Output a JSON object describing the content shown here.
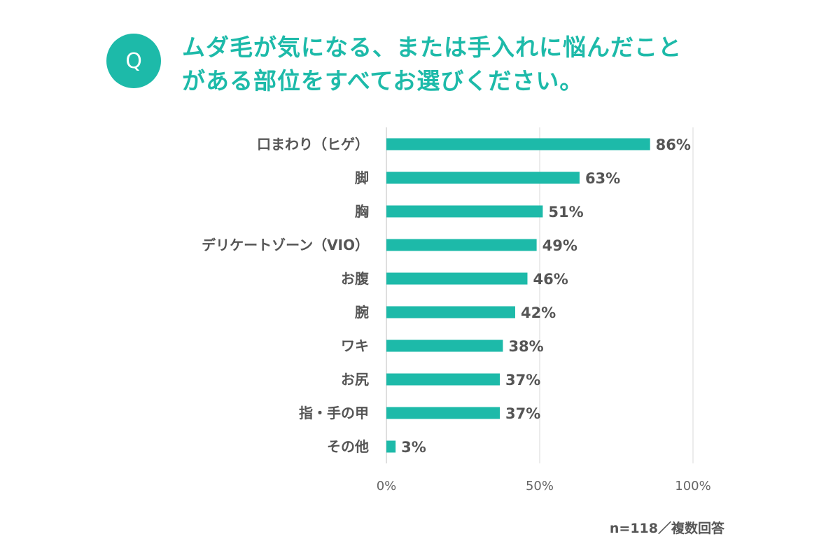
{
  "question": {
    "badge": "Q",
    "line1": "ムダ毛が気になる、または手入れに悩んだこと",
    "line2": "がある部位をすべてお選びください。"
  },
  "footnote": "n=118／複数回答",
  "colors": {
    "accent": "#1dbaa9",
    "bar": "#1dbaa9",
    "axis_text": "#666666",
    "grid": "#d9d9d9"
  },
  "chart_data": {
    "type": "bar",
    "orientation": "horizontal",
    "categories": [
      "口まわり（ヒゲ）",
      "脚",
      "胸",
      "デリケートゾーン（VIO）",
      "お腹",
      "腕",
      "ワキ",
      "お尻",
      "指・手の甲",
      "その他"
    ],
    "values": [
      86,
      63,
      51,
      49,
      46,
      42,
      38,
      37,
      37,
      3
    ],
    "data_labels": [
      "86%",
      "63%",
      "51%",
      "49%",
      "46%",
      "42%",
      "38%",
      "37%",
      "37%",
      "3%"
    ],
    "xlim": [
      0,
      100
    ],
    "xticks": [
      0,
      50,
      100
    ],
    "xtick_labels": [
      "0%",
      "50%",
      "100%"
    ],
    "grid": true
  }
}
